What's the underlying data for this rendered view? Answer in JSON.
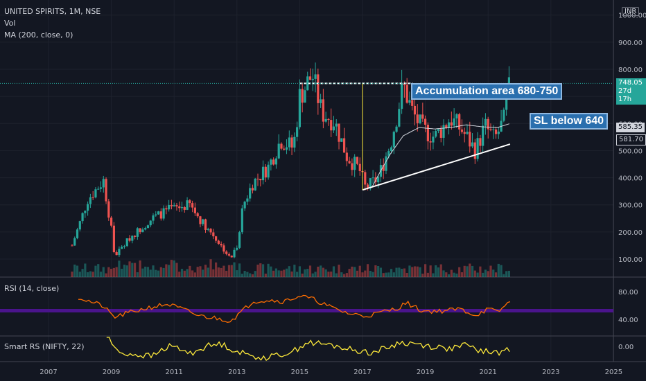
{
  "header": {
    "title": "UNITED SPIRITS, 1M, NSE",
    "vol_label": "Vol",
    "ma_label": "MA (200, close, 0)"
  },
  "currency_button": "INR",
  "rsi_pane": {
    "label": "RSI (14, close)"
  },
  "rs_pane": {
    "label": "Smart RS (NIFTY, 22)"
  },
  "annotations": {
    "accumulation": "Accumulation area 680-750",
    "stop_loss": "SL below 640"
  },
  "price_tags": {
    "last_price": "748.05",
    "countdown": "27d 17h",
    "ma_value": "585.35",
    "ma_value2": "581.70"
  },
  "colors": {
    "background": "#131722",
    "up_candle": "#26a69a",
    "down_candle": "#ef5350",
    "ma_line": "#d1d4dc",
    "rsi_line": "#ff6d00",
    "rsi_band": "#4a148c",
    "rs_line": "#ffeb3b",
    "annotation_bg": "#2a6fae",
    "last_price_tag": "#26a69a"
  },
  "chart_data": [
    {
      "type": "candlestick",
      "pane": "price",
      "x_axis": {
        "ticks": [
          "2007",
          "2009",
          "2011",
          "2013",
          "2015",
          "2017",
          "2019",
          "2021",
          "2023",
          "2025"
        ],
        "range": [
          2006.6,
          2025.0
        ]
      },
      "y_axis": {
        "ticks": [
          "100.00",
          "200.00",
          "300.00",
          "400.00",
          "500.00",
          "600.00",
          "700.00",
          "800.00",
          "900.00",
          "1000.00"
        ],
        "range": [
          40,
          1040
        ]
      },
      "anchors": [
        [
          2007.75,
          150
        ],
        [
          2008.25,
          320
        ],
        [
          2008.75,
          390
        ],
        [
          2009.0,
          210
        ],
        [
          2009.1,
          110
        ],
        [
          2009.6,
          180
        ],
        [
          2010.3,
          250
        ],
        [
          2010.8,
          280
        ],
        [
          2011.5,
          300
        ],
        [
          2011.8,
          250
        ],
        [
          2012.3,
          180
        ],
        [
          2012.8,
          100
        ],
        [
          2013.0,
          150
        ],
        [
          2013.2,
          300
        ],
        [
          2013.5,
          380
        ],
        [
          2014.0,
          440
        ],
        [
          2014.4,
          540
        ],
        [
          2014.8,
          510
        ],
        [
          2015.0,
          700
        ],
        [
          2015.4,
          780
        ],
        [
          2015.7,
          640
        ],
        [
          2016.1,
          610
        ],
        [
          2016.5,
          480
        ],
        [
          2016.9,
          430
        ],
        [
          2017.1,
          360
        ],
        [
          2017.5,
          400
        ],
        [
          2017.9,
          530
        ],
        [
          2018.3,
          740
        ],
        [
          2018.6,
          640
        ],
        [
          2018.9,
          580
        ],
        [
          2019.3,
          550
        ],
        [
          2019.8,
          620
        ],
        [
          2020.2,
          570
        ],
        [
          2020.6,
          500
        ],
        [
          2020.9,
          590
        ],
        [
          2021.2,
          540
        ],
        [
          2021.5,
          610
        ],
        [
          2021.7,
          748
        ]
      ],
      "ma_200": [
        [
          2017.3,
          365
        ],
        [
          2017.6,
          430
        ],
        [
          2017.9,
          490
        ],
        [
          2018.3,
          555
        ],
        [
          2018.8,
          585
        ],
        [
          2019.3,
          580
        ],
        [
          2019.8,
          585
        ],
        [
          2020.3,
          595
        ],
        [
          2020.8,
          588
        ],
        [
          2021.3,
          585
        ],
        [
          2021.7,
          600
        ]
      ],
      "trendlines": [
        {
          "name": "resistance",
          "from": [
            2015.0,
            748
          ],
          "to": [
            2018.6,
            748
          ]
        },
        {
          "name": "support",
          "from": [
            2017.0,
            355
          ],
          "to": [
            2021.7,
            524
          ]
        },
        {
          "name": "pattern-height",
          "from": [
            2017.0,
            748
          ],
          "to": [
            2017.0,
            355
          ]
        },
        {
          "name": "accumulation-top",
          "from": [
            2018.6,
            700
          ],
          "to": [
            2021.7,
            700
          ]
        }
      ],
      "last_price": 748.05
    },
    {
      "type": "line",
      "pane": "rsi",
      "y_axis": {
        "ticks": [
          "40.00",
          "80.00"
        ],
        "range": [
          22,
          92
        ]
      },
      "band": [
        50,
        55
      ],
      "anchors": [
        [
          2007.95,
          72
        ],
        [
          2008.3,
          66
        ],
        [
          2008.7,
          60
        ],
        [
          2009.1,
          43
        ],
        [
          2009.6,
          50
        ],
        [
          2010.2,
          57
        ],
        [
          2010.8,
          62
        ],
        [
          2011.3,
          54
        ],
        [
          2011.8,
          45
        ],
        [
          2012.3,
          42
        ],
        [
          2012.8,
          38
        ],
        [
          2013.2,
          53
        ],
        [
          2013.5,
          66
        ],
        [
          2014.0,
          68
        ],
        [
          2014.5,
          66
        ],
        [
          2015.0,
          74
        ],
        [
          2015.5,
          68
        ],
        [
          2016.0,
          57
        ],
        [
          2016.6,
          48
        ],
        [
          2017.1,
          45
        ],
        [
          2017.6,
          50
        ],
        [
          2018.1,
          56
        ],
        [
          2018.4,
          64
        ],
        [
          2018.9,
          52
        ],
        [
          2019.5,
          52
        ],
        [
          2020.1,
          55
        ],
        [
          2020.6,
          46
        ],
        [
          2021.0,
          55
        ],
        [
          2021.3,
          50
        ],
        [
          2021.7,
          66
        ]
      ]
    },
    {
      "type": "line",
      "pane": "smart-rs",
      "y_axis": {
        "ticks": [
          "0.00"
        ]
      },
      "anchors": [
        [
          2008.85,
          0.1
        ],
        [
          2009.2,
          -0.05
        ],
        [
          2010.3,
          -0.08
        ],
        [
          2010.8,
          0.0
        ],
        [
          2011.1,
          -0.01
        ],
        [
          2011.5,
          -0.06
        ],
        [
          2012.0,
          0.0
        ],
        [
          2012.5,
          0.02
        ],
        [
          2013.0,
          -0.04
        ],
        [
          2013.5,
          -0.08
        ],
        [
          2014.0,
          -0.09
        ],
        [
          2014.8,
          -0.04
        ],
        [
          2015.2,
          0.03
        ],
        [
          2015.7,
          0.02
        ],
        [
          2016.2,
          0.0
        ],
        [
          2016.7,
          -0.03
        ],
        [
          2017.3,
          -0.05
        ],
        [
          2017.8,
          -0.01
        ],
        [
          2018.2,
          0.03
        ],
        [
          2018.7,
          0.02
        ],
        [
          2019.2,
          0.0
        ],
        [
          2019.8,
          -0.02
        ],
        [
          2020.3,
          0.01
        ],
        [
          2020.8,
          -0.04
        ],
        [
          2021.3,
          -0.05
        ],
        [
          2021.7,
          -0.03
        ]
      ]
    }
  ]
}
